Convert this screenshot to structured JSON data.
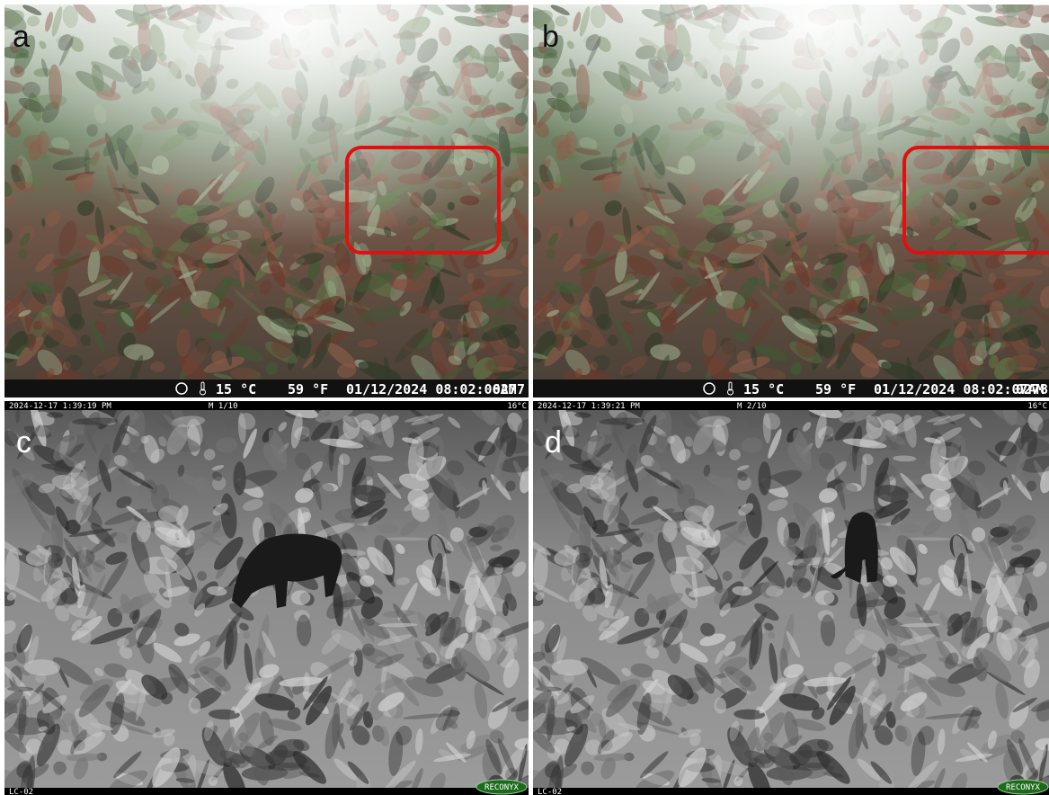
{
  "panels": [
    {
      "label": "a",
      "footer": {
        "temp_c": "15 °C",
        "temp_f": "59 °F",
        "datetime": "01/12/2024 08:02:06AM",
        "frame": "0277"
      }
    },
    {
      "label": "b",
      "footer": {
        "temp_c": "15 °C",
        "temp_f": "59 °F",
        "datetime": "01/12/2024 08:02:07AM",
        "frame": "0278"
      }
    },
    {
      "label": "c",
      "header": {
        "datetime": "2024-12-17 1:39:19 PM",
        "mode": "M 1/10",
        "temp": "16°C"
      },
      "footer": {
        "camera": "LC-02",
        "brand": "RECONYX"
      }
    },
    {
      "label": "d",
      "header": {
        "datetime": "2024-12-17 1:39:21 PM",
        "mode": "M 2/10",
        "temp": "16°C"
      },
      "footer": {
        "camera": "LC-02",
        "brand": "RECONYX"
      }
    }
  ]
}
